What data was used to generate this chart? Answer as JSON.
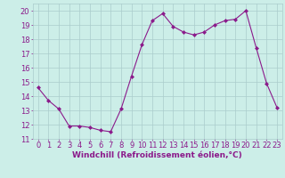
{
  "x": [
    0,
    1,
    2,
    3,
    4,
    5,
    6,
    7,
    8,
    9,
    10,
    11,
    12,
    13,
    14,
    15,
    16,
    17,
    18,
    19,
    20,
    21,
    22,
    23
  ],
  "y": [
    14.6,
    13.7,
    13.1,
    11.9,
    11.9,
    11.8,
    11.6,
    11.5,
    13.1,
    15.4,
    17.6,
    19.3,
    19.8,
    18.9,
    18.5,
    18.3,
    18.5,
    19.0,
    19.3,
    19.4,
    20.0,
    17.4,
    14.9,
    13.2
  ],
  "line_color": "#8b1a8b",
  "marker": "D",
  "marker_size": 2,
  "bg_color": "#cceee8",
  "grid_color": "#aacccc",
  "tick_color": "#8b1a8b",
  "label_color": "#8b1a8b",
  "xlabel": "Windchill (Refroidissement éolien,°C)",
  "ylim": [
    11,
    20.5
  ],
  "yticks": [
    11,
    12,
    13,
    14,
    15,
    16,
    17,
    18,
    19,
    20
  ],
  "xticks": [
    0,
    1,
    2,
    3,
    4,
    5,
    6,
    7,
    8,
    9,
    10,
    11,
    12,
    13,
    14,
    15,
    16,
    17,
    18,
    19,
    20,
    21,
    22,
    23
  ],
  "tick_fontsize": 6,
  "xlabel_fontsize": 6.5
}
